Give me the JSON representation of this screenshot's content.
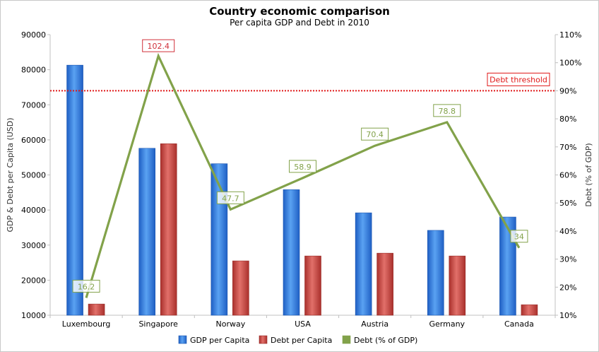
{
  "chart_data": {
    "type": "bar",
    "title": "Country economic comparison",
    "subtitle": "Per capita GDP and Debt in 2010",
    "categories": [
      "Luxembourg",
      "Singapore",
      "Norway",
      "USA",
      "Austria",
      "Germany",
      "Canada"
    ],
    "series": [
      {
        "name": "GDP per Capita",
        "type": "bar",
        "axis": "left",
        "color": "#2f7be0",
        "values": [
          81300,
          57600,
          53200,
          45800,
          39200,
          34200,
          38000
        ]
      },
      {
        "name": "Debt per Capita",
        "type": "bar",
        "axis": "left",
        "color": "#c9413c",
        "values": [
          13200,
          58900,
          25500,
          26900,
          27700,
          26900,
          13000
        ]
      },
      {
        "name": "Debt (% of GDP)",
        "type": "line",
        "axis": "right",
        "color": "#82a24a",
        "values": [
          16.2,
          102.4,
          47.7,
          58.9,
          70.4,
          78.8,
          34
        ],
        "labels": [
          "16.2",
          "102.4",
          "47.7",
          "58.9",
          "70.4",
          "78.8",
          "34"
        ]
      }
    ],
    "left_axis": {
      "label": "GDP & Debt per Capita (USD)",
      "min": 10000,
      "max": 90000,
      "ticks": [
        "10000",
        "20000",
        "30000",
        "40000",
        "50000",
        "60000",
        "70000",
        "80000",
        "90000"
      ]
    },
    "right_axis": {
      "label": "Debt (% of GDP)",
      "min": 10,
      "max": 110,
      "ticks": [
        "10%",
        "20%",
        "30%",
        "40%",
        "50%",
        "60%",
        "70%",
        "80%",
        "90%",
        "100%",
        "110%"
      ]
    },
    "threshold": {
      "label": "Debt threshold",
      "value": 90,
      "axis": "right",
      "color": "#e01818"
    },
    "highlight_color": "#d0303a",
    "legend_position": "bottom"
  }
}
